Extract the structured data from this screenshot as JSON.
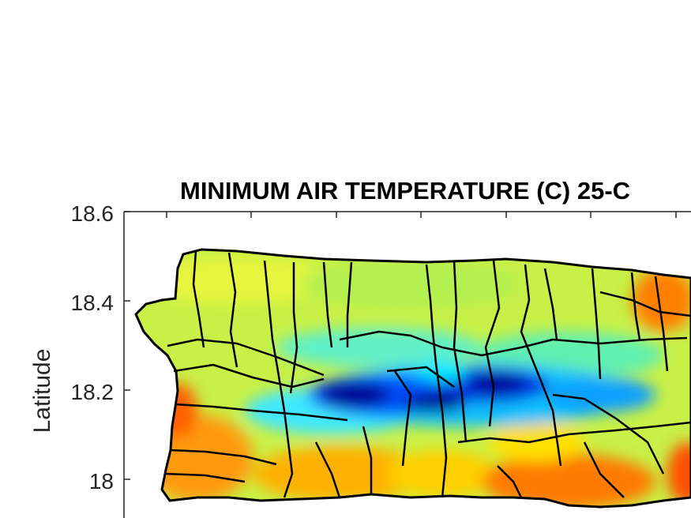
{
  "title": "MINIMUM AIR TEMPERATURE (C) 25-C",
  "y_axis": {
    "label": "Latitude",
    "ticks": [
      "18.6",
      "18.4",
      "18.2",
      "18"
    ]
  },
  "map": {
    "region": "Puerto Rico",
    "overlay": "municipality boundaries",
    "colormap": [
      "#00008b",
      "#0000ff",
      "#0080ff",
      "#00ffff",
      "#80ff80",
      "#ffff00",
      "#ff8000",
      "#ff0000"
    ]
  }
}
